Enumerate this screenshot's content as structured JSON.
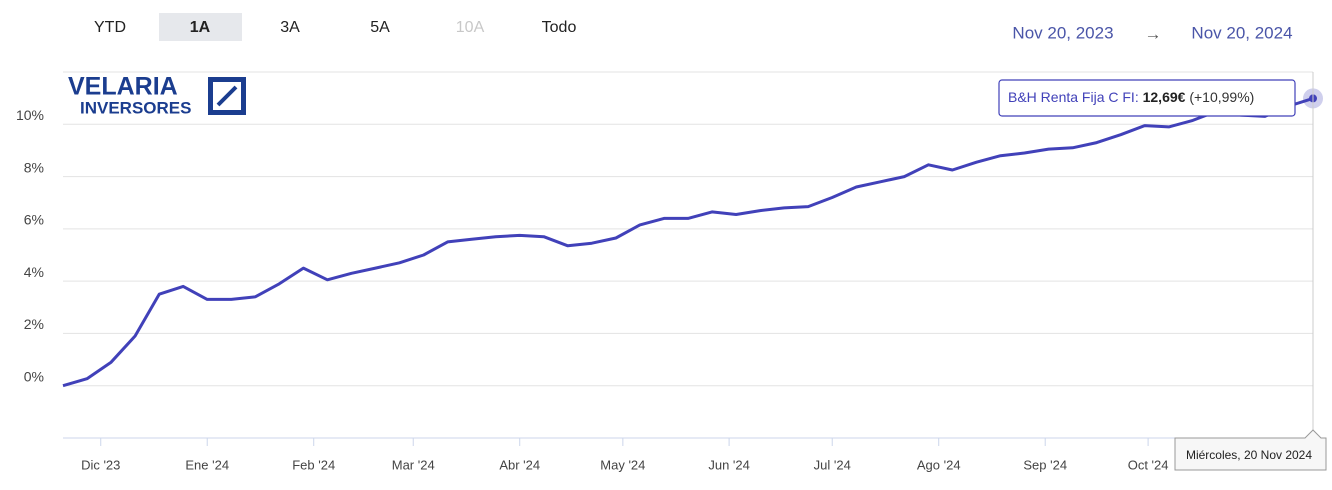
{
  "chart_data": {
    "type": "line",
    "range_buttons": [
      "YTD",
      "1A",
      "3A",
      "5A",
      "10A",
      "Todo"
    ],
    "selected_range": "1A",
    "disabled_ranges": [
      "10A"
    ],
    "date_from": "Nov 20, 2023",
    "date_arrow": "→",
    "date_to": "Nov 20, 2024",
    "logo": {
      "line1": "VELARIA",
      "line2": "INVERSORES"
    },
    "categories": [
      null,
      null,
      null,
      null,
      null,
      null,
      null,
      null,
      null,
      null,
      null,
      null,
      null,
      null,
      null,
      null,
      null,
      null,
      null,
      null,
      null,
      null,
      null,
      null,
      null,
      null,
      null,
      null,
      null,
      null,
      null,
      null,
      null,
      null,
      null,
      null,
      null,
      null,
      null,
      null,
      null,
      null,
      null,
      null,
      null,
      null,
      null,
      null,
      null,
      null,
      null,
      null,
      null
    ],
    "series": [
      {
        "name": "B&H Renta Fija C FI",
        "color": "#4141b9",
        "values": [
          0.0,
          0.27,
          0.9,
          1.9,
          3.5,
          3.8,
          3.3,
          3.3,
          3.4,
          3.9,
          4.5,
          4.05,
          4.3,
          4.5,
          4.7,
          5.0,
          5.5,
          5.6,
          5.7,
          5.75,
          5.7,
          5.35,
          5.45,
          5.65,
          6.15,
          6.4,
          6.4,
          6.65,
          6.55,
          6.7,
          6.8,
          6.85,
          7.2,
          7.6,
          7.8,
          8.0,
          8.45,
          8.25,
          8.55,
          8.8,
          8.9,
          9.05,
          9.1,
          9.3,
          9.6,
          9.95,
          9.9,
          10.15,
          10.5,
          10.35,
          10.3,
          10.7,
          10.99
        ]
      }
    ],
    "xlim": [
      0,
      52
    ],
    "xticks": [
      {
        "value": 1.57,
        "label": "Dic '23"
      },
      {
        "value": 6,
        "label": "Ene '24"
      },
      {
        "value": 10.43,
        "label": "Feb '24"
      },
      {
        "value": 14.57,
        "label": "Mar '24"
      },
      {
        "value": 19,
        "label": "Abr '24"
      },
      {
        "value": 23.29,
        "label": "May '24"
      },
      {
        "value": 27.71,
        "label": "Jun '24"
      },
      {
        "value": 32,
        "label": "Jul '24"
      },
      {
        "value": 36.43,
        "label": "Ago '24"
      },
      {
        "value": 40.86,
        "label": "Sep '24"
      },
      {
        "value": 45.14,
        "label": "Oct '24"
      }
    ],
    "ylim": [
      -2,
      12
    ],
    "yticks": [
      {
        "value": 0,
        "label": "0%"
      },
      {
        "value": 2,
        "label": "2%"
      },
      {
        "value": 4,
        "label": "4%"
      },
      {
        "value": 6,
        "label": "6%"
      },
      {
        "value": 8,
        "label": "8%"
      },
      {
        "value": 10,
        "label": "10%"
      }
    ],
    "grid": true,
    "tooltip": {
      "price": "12,69€",
      "change": "(+10,99%)",
      "date": "Miércoles, 20 Nov 2024"
    }
  }
}
